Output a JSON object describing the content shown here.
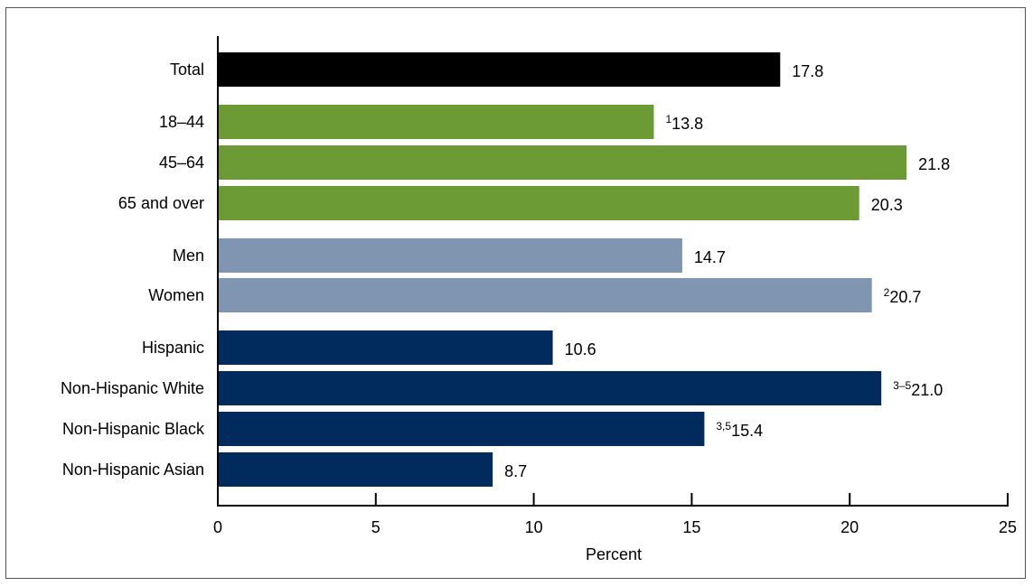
{
  "chart_data": {
    "type": "bar",
    "orientation": "horizontal",
    "xlabel": "Percent",
    "xlim": [
      0,
      25
    ],
    "xticks": [
      0,
      5,
      10,
      15,
      20,
      25
    ],
    "grid": false,
    "bars": [
      {
        "category": "Total",
        "value": 17.8,
        "prefix": "",
        "color": "#000000"
      },
      {
        "category": "18–44",
        "value": 13.8,
        "prefix": "1",
        "color": "#6c9a34"
      },
      {
        "category": "45–64",
        "value": 21.8,
        "prefix": "",
        "color": "#6c9a34"
      },
      {
        "category": "65 and over",
        "value": 20.3,
        "prefix": "",
        "color": "#6c9a34"
      },
      {
        "category": "Men",
        "value": 14.7,
        "prefix": "",
        "color": "#8096b0"
      },
      {
        "category": "Women",
        "value": 20.7,
        "prefix": "2",
        "color": "#8096b0"
      },
      {
        "category": "Hispanic",
        "value": 10.6,
        "prefix": "",
        "color": "#002b5c"
      },
      {
        "category": "Non-Hispanic White",
        "value": 21.0,
        "prefix": "3–5",
        "color": "#002b5c"
      },
      {
        "category": "Non-Hispanic Black",
        "value": 15.4,
        "prefix": "3,5",
        "color": "#002b5c"
      },
      {
        "category": "Non-Hispanic Asian",
        "value": 8.7,
        "prefix": "",
        "color": "#002b5c"
      }
    ]
  }
}
